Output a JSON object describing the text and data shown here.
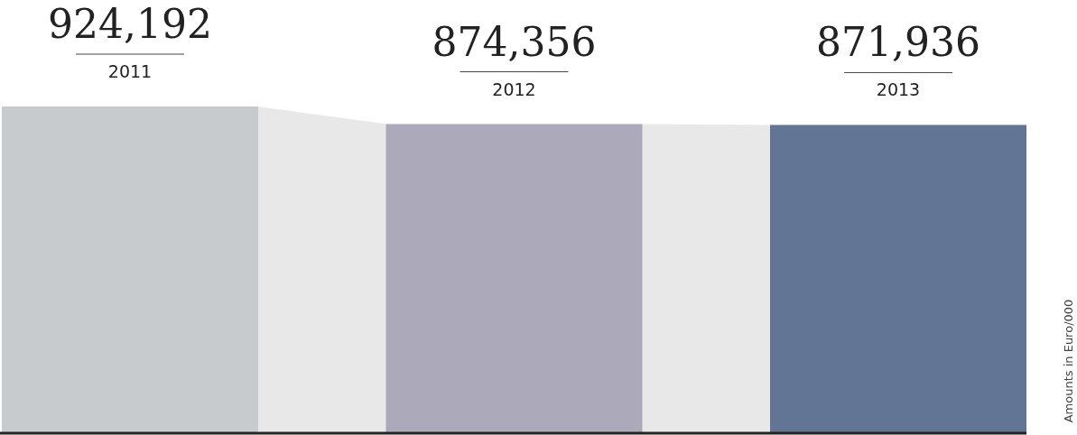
{
  "chart_data": {
    "type": "bar",
    "categories": [
      "2011",
      "2012",
      "2013"
    ],
    "values": [
      924192,
      874356,
      871936
    ],
    "colors": [
      "#c8cbce",
      "#aca9bb",
      "#627594"
    ],
    "value_labels": [
      "924,192",
      "874,356",
      "871,936"
    ],
    "annotations": [
      "Amounts in Euro/000"
    ]
  }
}
